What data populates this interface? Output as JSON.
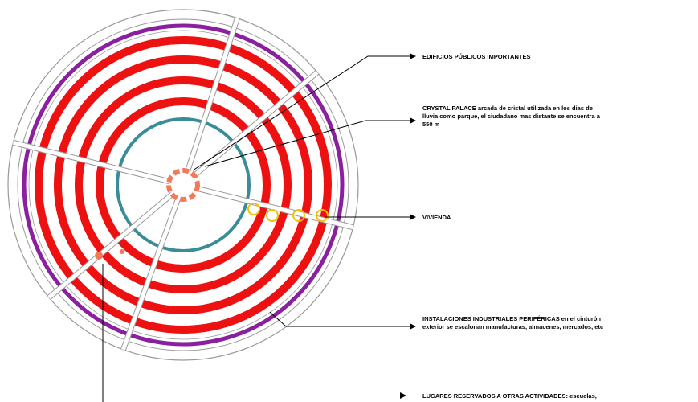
{
  "colors": {
    "red": "#ee1111",
    "purple": "#8a1fa0",
    "teal": "#3a8c99",
    "salmon": "#f07a5a",
    "yellow": "#f2c200",
    "line": "#000000",
    "ring_outline": "#999999"
  },
  "labels": {
    "edificios": "EDIFICIOS PÚBLICOS IMPORTANTES",
    "crystal_1": "CRYSTAL PALACE arcada de cristal utilizada en los dias de",
    "crystal_2": "lluvia como parque, el ciudadano mas distante se encuentra a",
    "crystal_3": "550 m",
    "vivienda": "VIVIENDA",
    "industriales_1": "INSTALACIONES INDUSTRIALES PERIFÉRICAS en el cinturón",
    "industriales_2": "exterior se escalonan manufacturas, almacenes, mercados, etc",
    "lugares_1": "LUGARES RESERVADOS A OTRAS ACTIVIDADES: escuelas,"
  }
}
